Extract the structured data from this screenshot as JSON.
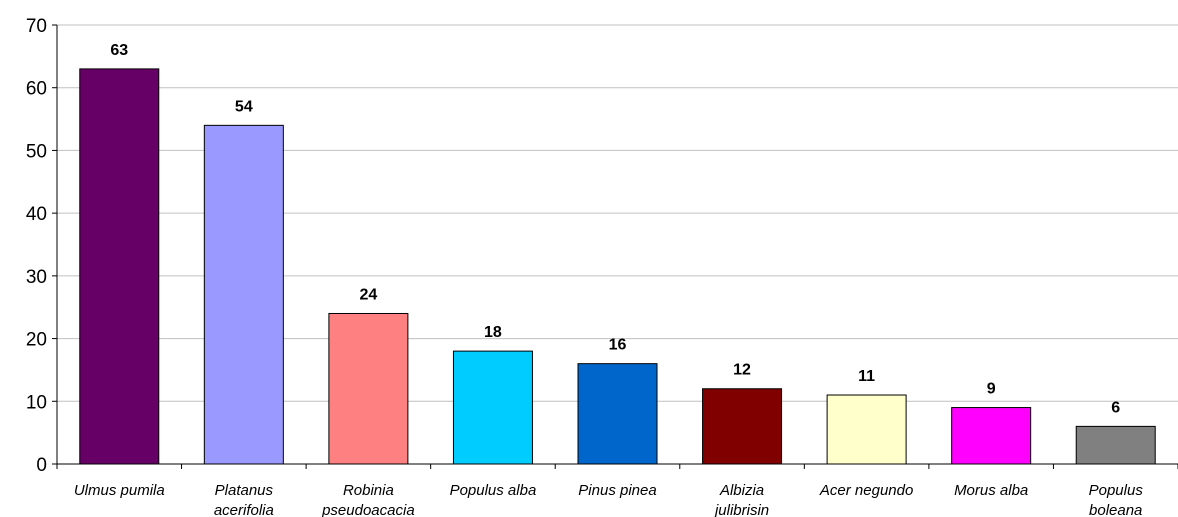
{
  "chart_data": {
    "type": "bar",
    "title": "",
    "xlabel": "",
    "ylabel": "",
    "ylim": [
      0,
      70
    ],
    "yticks": [
      0,
      10,
      20,
      30,
      40,
      50,
      60,
      70
    ],
    "grid": true,
    "legend": "none",
    "categories": [
      [
        "Ulmus pumila"
      ],
      [
        "Platanus",
        "acerifolia"
      ],
      [
        "Robinia",
        "pseudoacacia"
      ],
      [
        "Populus alba"
      ],
      [
        "Pinus pinea"
      ],
      [
        "Albizia",
        "julibrisin"
      ],
      [
        "Acer negundo"
      ],
      [
        "Morus alba"
      ],
      [
        "Populus",
        "boleana"
      ]
    ],
    "values": [
      63,
      54,
      24,
      18,
      16,
      12,
      11,
      9,
      6
    ],
    "colors": [
      "#660066",
      "#9999ff",
      "#ff8080",
      "#00ccff",
      "#0066cc",
      "#800000",
      "#ffffcc",
      "#ff00ff",
      "#808080"
    ]
  }
}
